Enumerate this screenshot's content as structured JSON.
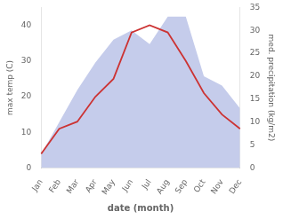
{
  "chart_data": {
    "type": "line",
    "xlabel": "date (month)",
    "ylabel": "max temp (C)",
    "y2label": "med. precipitation (kg/m2)",
    "categories": [
      "Jan",
      "Feb",
      "Mar",
      "Apr",
      "May",
      "Jun",
      "Jul",
      "Aug",
      "Sep",
      "Oct",
      "Nov",
      "Dec"
    ],
    "series": [
      {
        "type": "area",
        "axis": "y2",
        "color": "#c5cceb",
        "values": [
          3,
          10,
          17,
          23,
          28,
          30,
          27,
          33,
          33,
          20,
          18,
          13
        ]
      },
      {
        "type": "line",
        "color": "#cc3333",
        "values": [
          4,
          11,
          13,
          20,
          25,
          38,
          40,
          38,
          30,
          21,
          15,
          11
        ]
      }
    ],
    "ylim": [
      0,
      45
    ],
    "yticks": [
      0,
      10,
      20,
      30,
      40
    ],
    "y2lim": [
      0,
      35
    ],
    "y2ticks": [
      0,
      5,
      10,
      15,
      20,
      25,
      30,
      35
    ],
    "grid": false
  }
}
